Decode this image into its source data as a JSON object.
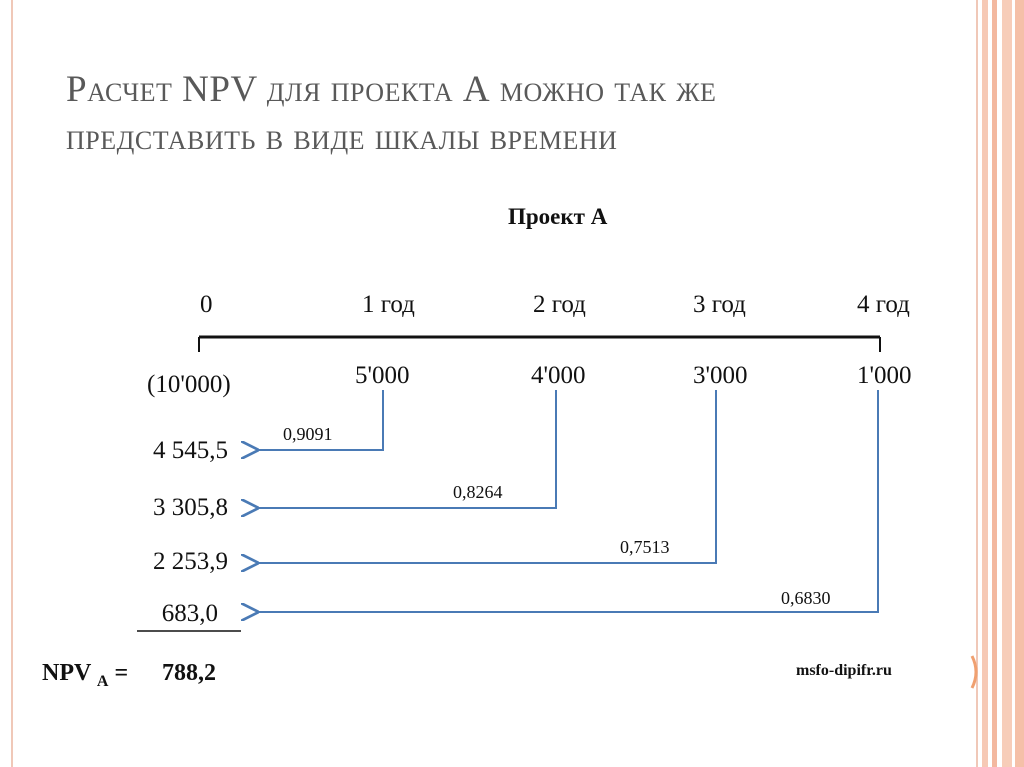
{
  "title": {
    "line1_prefix": "Расчет",
    "line1_npv": "NPV",
    "line1_rest": "для проекта",
    "line1_a": "А",
    "line1_tail": "можно так же",
    "line2": "представить в виде шкалы времени"
  },
  "project_label": "Проект А",
  "timeline": {
    "periods": [
      "0",
      "1  год",
      "2  год",
      "3  год",
      "4  год"
    ],
    "cash_flows": [
      "(10'000)",
      "5'000",
      "4'000",
      "3'000",
      "1'000"
    ],
    "discount_factors": [
      "0,9091",
      "0,8264",
      "0,7513",
      "0,6830"
    ],
    "present_values": [
      "4 545,5",
      "3 305,8",
      "2 253,9",
      "683,0"
    ]
  },
  "npv": {
    "label": "NPV",
    "subscript": "A",
    "equals": "=",
    "value": "788,2"
  },
  "source": "msfo-dipifr.ru",
  "colors": {
    "arrow": "#4a7ab5",
    "title": "#595959",
    "frame": "#f0c8b8"
  }
}
